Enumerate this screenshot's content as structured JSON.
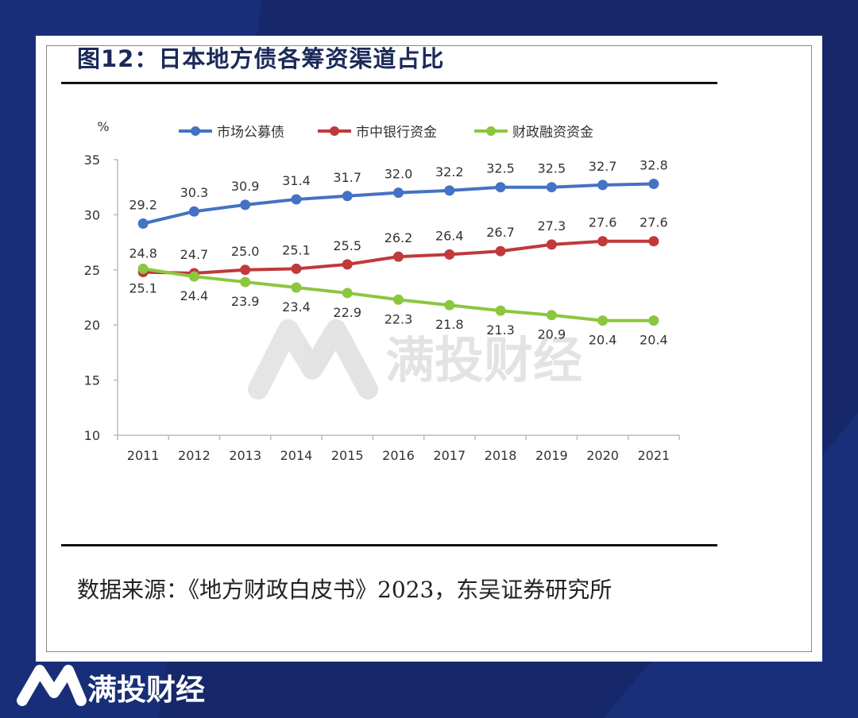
{
  "figure": {
    "title": "图12：日本地方债各筹资渠道占比",
    "source": "数据来源：《地方财政白皮书》2023，东吴证券研究所"
  },
  "watermark": {
    "text": "满投财经",
    "icon": "m-logo-icon"
  },
  "footer": {
    "brand": "满投财经",
    "icon": "m-logo-icon"
  },
  "colors": {
    "background": "#16286a",
    "market_bonds": "#4472c4",
    "bank_funds": "#c0393b",
    "fiscal_loan": "#8cc63f"
  },
  "chart_data": {
    "type": "line",
    "unit_label": "%",
    "categories": [
      "2011",
      "2012",
      "2013",
      "2014",
      "2015",
      "2016",
      "2017",
      "2018",
      "2019",
      "2020",
      "2021"
    ],
    "ylim": [
      10,
      35
    ],
    "yticks": [
      10,
      15,
      20,
      25,
      30,
      35
    ],
    "grid": false,
    "legend_position": "top",
    "data_labels": true,
    "series": [
      {
        "name": "市场公募债",
        "color": "#4472c4",
        "label_position": "above",
        "values": [
          29.2,
          30.3,
          30.9,
          31.4,
          31.7,
          32.0,
          32.2,
          32.5,
          32.5,
          32.7,
          32.8
        ]
      },
      {
        "name": "市中银行资金",
        "color": "#c0393b",
        "label_position": "above",
        "values": [
          24.8,
          24.7,
          25.0,
          25.1,
          25.5,
          26.2,
          26.4,
          26.7,
          27.3,
          27.6,
          27.6
        ]
      },
      {
        "name": "财政融资资金",
        "color": "#8cc63f",
        "label_position": "below",
        "values": [
          25.1,
          24.4,
          23.9,
          23.4,
          22.9,
          22.3,
          21.8,
          21.3,
          20.9,
          20.4,
          20.4
        ]
      }
    ]
  }
}
